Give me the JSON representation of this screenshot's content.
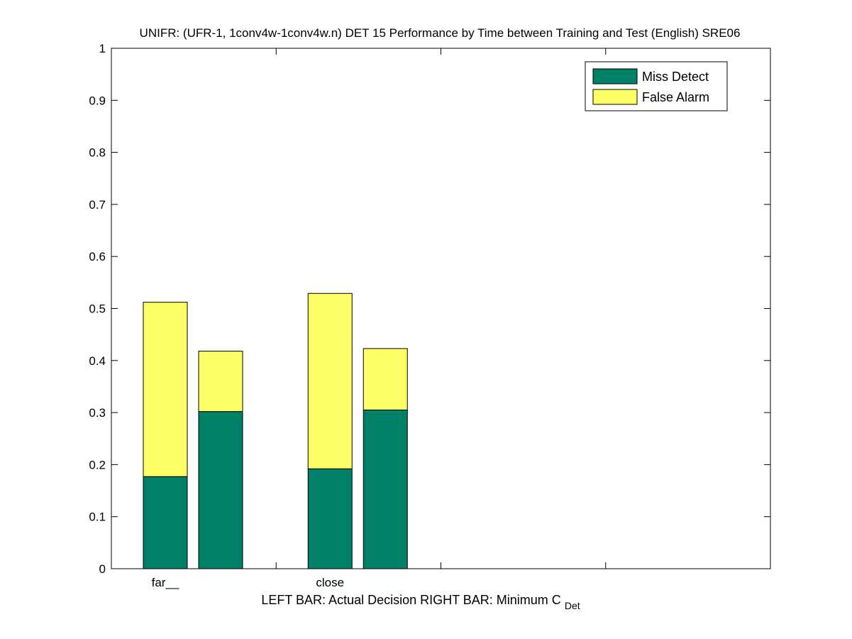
{
  "chart_data": {
    "type": "bar",
    "stacked": true,
    "title": "UNIFR: (UFR-1, 1conv4w-1conv4w.n) DET 15 Performance by Time between Training and Test (English) SRE06",
    "categories": [
      "far__",
      "close"
    ],
    "xlabel": {
      "main": "LEFT BAR: Actual Decision      RIGHT BAR: Minimum C",
      "subscript": "Det"
    },
    "ylabel": "",
    "ylim": [
      0,
      1
    ],
    "yticks": [
      "0",
      "0.1",
      "0.2",
      "0.3",
      "0.4",
      "0.5",
      "0.6",
      "0.7",
      "0.8",
      "0.9",
      "1"
    ],
    "grid": false,
    "legend_position": "top-right",
    "colors": {
      "miss": "#008066",
      "false_alarm": "#ffff66",
      "axis": "#000000",
      "background": "#ffffff"
    },
    "legend": [
      {
        "name": "Miss Detect",
        "color": "#008066"
      },
      {
        "name": "False Alarm",
        "color": "#ffff66"
      }
    ],
    "bars": [
      {
        "category": "far__",
        "decision": "Actual Decision",
        "miss": 0.177,
        "false_alarm": 0.335
      },
      {
        "category": "far__",
        "decision": "Minimum C_Det",
        "miss": 0.302,
        "false_alarm": 0.116
      },
      {
        "category": "close",
        "decision": "Actual Decision",
        "miss": 0.192,
        "false_alarm": 0.337
      },
      {
        "category": "close",
        "decision": "Minimum C_Det",
        "miss": 0.305,
        "false_alarm": 0.118
      }
    ]
  }
}
